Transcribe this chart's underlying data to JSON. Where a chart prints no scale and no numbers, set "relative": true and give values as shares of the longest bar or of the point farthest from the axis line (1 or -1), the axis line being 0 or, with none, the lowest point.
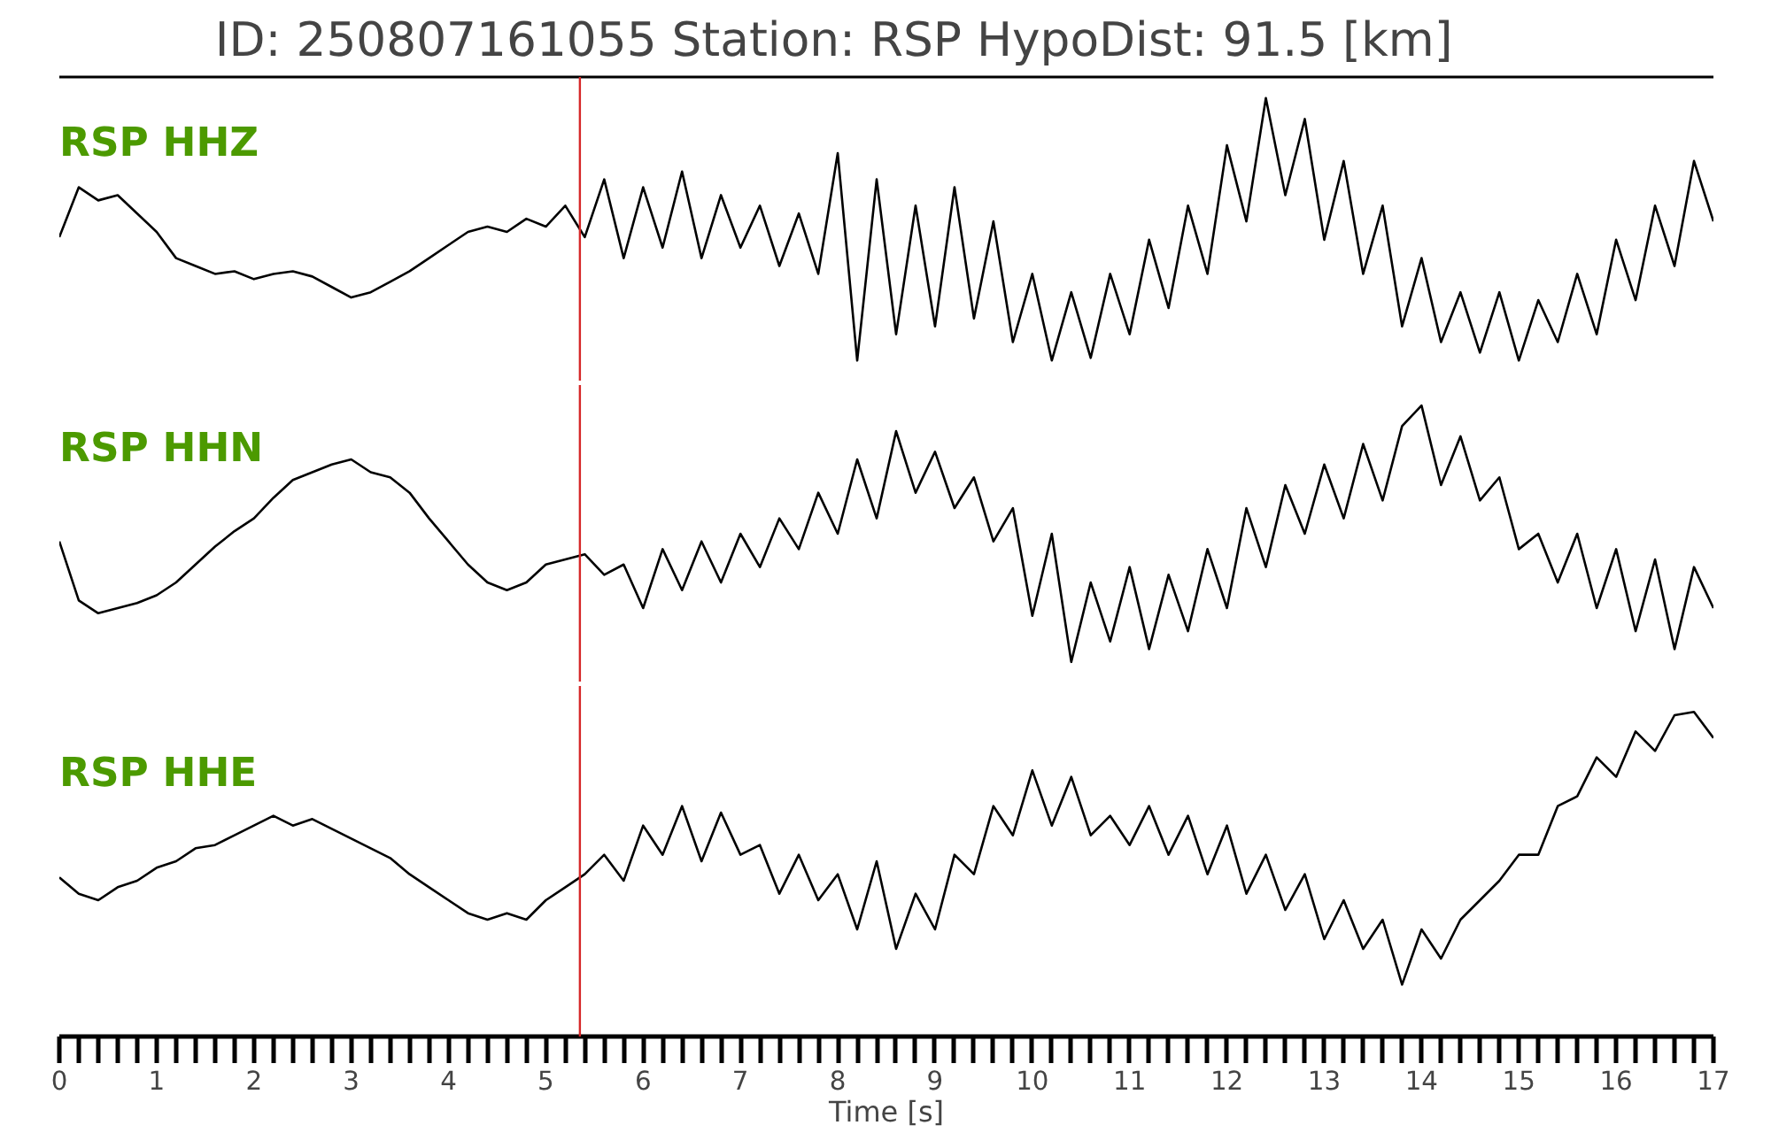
{
  "chart_data": [
    {
      "type": "line",
      "title": "ID: 250807161055   Station: RSP   HypoDist:    91.5 [km]",
      "relative": true,
      "tick_labels": false,
      "xlim": [
        0,
        17
      ],
      "grid": false,
      "x": [
        0,
        0.2,
        0.4,
        0.6,
        0.8,
        1.0,
        1.2,
        1.4,
        1.6,
        1.8,
        2.0,
        2.2,
        2.4,
        2.6,
        2.8,
        3.0,
        3.2,
        3.4,
        3.6,
        3.8,
        4.0,
        4.2,
        4.4,
        4.6,
        4.8,
        5.0,
        5.2,
        5.4,
        5.6,
        5.8,
        6.0,
        6.2,
        6.4,
        6.6,
        6.8,
        7.0,
        7.2,
        7.4,
        7.6,
        7.8,
        8.0,
        8.2,
        8.4,
        8.6,
        8.8,
        9.0,
        9.2,
        9.4,
        9.6,
        9.8,
        10.0,
        10.2,
        10.4,
        10.6,
        10.8,
        11.0,
        11.2,
        11.4,
        11.6,
        11.8,
        12.0,
        12.2,
        12.4,
        12.6,
        12.8,
        13.0,
        13.2,
        13.4,
        13.6,
        13.8,
        14.0,
        14.2,
        14.4,
        14.6,
        14.8,
        15.0,
        15.2,
        15.4,
        15.6,
        15.8,
        16.0,
        16.2,
        16.4,
        16.6,
        16.8,
        17.0
      ],
      "series": [
        {
          "name": "RSP HHZ",
          "color": "#000000",
          "values": [
            0.47,
            0.66,
            0.61,
            0.63,
            0.56,
            0.49,
            0.39,
            0.36,
            0.33,
            0.34,
            0.31,
            0.33,
            0.34,
            0.32,
            0.28,
            0.24,
            0.26,
            0.3,
            0.34,
            0.39,
            0.44,
            0.49,
            0.51,
            0.49,
            0.54,
            0.51,
            0.59,
            0.47,
            0.69,
            0.39,
            0.66,
            0.43,
            0.72,
            0.39,
            0.63,
            0.43,
            0.59,
            0.36,
            0.56,
            0.33,
            0.79,
            0,
            0.69,
            0.1,
            0.59,
            0.13,
            0.66,
            0.16,
            0.53,
            0.07,
            0.33,
            0,
            0.26,
            0.01,
            0.33,
            0.1,
            0.46,
            0.2,
            0.59,
            0.33,
            0.82,
            0.53,
            1,
            0.63,
            0.92,
            0.46,
            0.76,
            0.33,
            0.59,
            0.13,
            0.39,
            0.07,
            0.26,
            0.03,
            0.26,
            0,
            0.23,
            0.07,
            0.33,
            0.1,
            0.46,
            0.23,
            0.59,
            0.36,
            0.76,
            0.53
          ]
        }
      ],
      "ref_lines": [
        {
          "axis": "x",
          "value": 5.35,
          "color": "#d62728"
        }
      ]
    },
    {
      "type": "line",
      "relative": true,
      "tick_labels": false,
      "xlim": [
        0,
        17
      ],
      "grid": false,
      "x": [
        0,
        0.2,
        0.4,
        0.6,
        0.8,
        1.0,
        1.2,
        1.4,
        1.6,
        1.8,
        2.0,
        2.2,
        2.4,
        2.6,
        2.8,
        3.0,
        3.2,
        3.4,
        3.6,
        3.8,
        4.0,
        4.2,
        4.4,
        4.6,
        4.8,
        5.0,
        5.2,
        5.4,
        5.6,
        5.8,
        6.0,
        6.2,
        6.4,
        6.6,
        6.8,
        7.0,
        7.2,
        7.4,
        7.6,
        7.8,
        8.0,
        8.2,
        8.4,
        8.6,
        8.8,
        9.0,
        9.2,
        9.4,
        9.6,
        9.8,
        10.0,
        10.2,
        10.4,
        10.6,
        10.8,
        11.0,
        11.2,
        11.4,
        11.6,
        11.8,
        12.0,
        12.2,
        12.4,
        12.6,
        12.8,
        13.0,
        13.2,
        13.4,
        13.6,
        13.8,
        14.0,
        14.2,
        14.4,
        14.6,
        14.8,
        15.0,
        15.2,
        15.4,
        15.6,
        15.8,
        16.0,
        16.2,
        16.4,
        16.6,
        16.8,
        17.0
      ],
      "series": [
        {
          "name": "RSP HHN",
          "color": "#000000",
          "values": [
            0.47,
            0.24,
            0.19,
            0.21,
            0.23,
            0.26,
            0.31,
            0.38,
            0.45,
            0.51,
            0.56,
            0.64,
            0.71,
            0.74,
            0.77,
            0.79,
            0.74,
            0.72,
            0.66,
            0.56,
            0.47,
            0.38,
            0.31,
            0.28,
            0.31,
            0.38,
            0.4,
            0.42,
            0.34,
            0.38,
            0.21,
            0.44,
            0.28,
            0.47,
            0.31,
            0.5,
            0.37,
            0.56,
            0.44,
            0.66,
            0.5,
            0.79,
            0.56,
            0.9,
            0.66,
            0.82,
            0.6,
            0.72,
            0.47,
            0.6,
            0.18,
            0.5,
            0,
            0.31,
            0.08,
            0.37,
            0.05,
            0.34,
            0.12,
            0.44,
            0.21,
            0.6,
            0.37,
            0.69,
            0.5,
            0.77,
            0.56,
            0.85,
            0.63,
            0.92,
            1,
            0.69,
            0.88,
            0.63,
            0.72,
            0.44,
            0.5,
            0.31,
            0.5,
            0.21,
            0.44,
            0.12,
            0.4,
            0.05,
            0.37,
            0.21
          ]
        }
      ],
      "ref_lines": [
        {
          "axis": "x",
          "value": 5.35,
          "color": "#d62728"
        }
      ]
    },
    {
      "type": "line",
      "relative": true,
      "tick_labels": "x",
      "xlabel": "Time [s]",
      "xlim": [
        0,
        17
      ],
      "grid": false,
      "xticks": [
        0,
        {
          "value": 0.2,
          "label": null
        },
        {
          "value": 0.4,
          "label": null
        },
        {
          "value": 0.6,
          "label": null
        },
        {
          "value": 0.8,
          "label": null
        },
        1,
        {
          "value": 1.2,
          "label": null
        },
        {
          "value": 1.4,
          "label": null
        },
        {
          "value": 1.6,
          "label": null
        },
        {
          "value": 1.8,
          "label": null
        },
        2,
        {
          "value": 2.2,
          "label": null
        },
        {
          "value": 2.4,
          "label": null
        },
        {
          "value": 2.6,
          "label": null
        },
        {
          "value": 2.8,
          "label": null
        },
        3,
        {
          "value": 3.2,
          "label": null
        },
        {
          "value": 3.4,
          "label": null
        },
        {
          "value": 3.6,
          "label": null
        },
        {
          "value": 3.8,
          "label": null
        },
        4,
        {
          "value": 4.2,
          "label": null
        },
        {
          "value": 4.4,
          "label": null
        },
        {
          "value": 4.6,
          "label": null
        },
        {
          "value": 4.8,
          "label": null
        },
        5,
        {
          "value": 5.2,
          "label": null
        },
        {
          "value": 5.4,
          "label": null
        },
        {
          "value": 5.6,
          "label": null
        },
        {
          "value": 5.8,
          "label": null
        },
        6,
        {
          "value": 6.2,
          "label": null
        },
        {
          "value": 6.4,
          "label": null
        },
        {
          "value": 6.6,
          "label": null
        },
        {
          "value": 6.8,
          "label": null
        },
        7,
        {
          "value": 7.2,
          "label": null
        },
        {
          "value": 7.4,
          "label": null
        },
        {
          "value": 7.6,
          "label": null
        },
        {
          "value": 7.8,
          "label": null
        },
        8,
        {
          "value": 8.2,
          "label": null
        },
        {
          "value": 8.4,
          "label": null
        },
        {
          "value": 8.6,
          "label": null
        },
        {
          "value": 8.8,
          "label": null
        },
        9,
        {
          "value": 9.2,
          "label": null
        },
        {
          "value": 9.4,
          "label": null
        },
        {
          "value": 9.6,
          "label": null
        },
        {
          "value": 9.8,
          "label": null
        },
        10,
        {
          "value": 10.2,
          "label": null
        },
        {
          "value": 10.4,
          "label": null
        },
        {
          "value": 10.6,
          "label": null
        },
        {
          "value": 10.8,
          "label": null
        },
        11,
        {
          "value": 11.2,
          "label": null
        },
        {
          "value": 11.4,
          "label": null
        },
        {
          "value": 11.6,
          "label": null
        },
        {
          "value": 11.8,
          "label": null
        },
        12,
        {
          "value": 12.2,
          "label": null
        },
        {
          "value": 12.4,
          "label": null
        },
        {
          "value": 12.6,
          "label": null
        },
        {
          "value": 12.8,
          "label": null
        },
        13,
        {
          "value": 13.2,
          "label": null
        },
        {
          "value": 13.4,
          "label": null
        },
        {
          "value": 13.6,
          "label": null
        },
        {
          "value": 13.8,
          "label": null
        },
        14,
        {
          "value": 14.2,
          "label": null
        },
        {
          "value": 14.4,
          "label": null
        },
        {
          "value": 14.6,
          "label": null
        },
        {
          "value": 14.8,
          "label": null
        },
        15,
        {
          "value": 15.2,
          "label": null
        },
        {
          "value": 15.4,
          "label": null
        },
        {
          "value": 15.6,
          "label": null
        },
        {
          "value": 15.8,
          "label": null
        },
        16,
        {
          "value": 16.2,
          "label": null
        },
        {
          "value": 16.4,
          "label": null
        },
        {
          "value": 16.6,
          "label": null
        },
        {
          "value": 16.8,
          "label": null
        },
        17
      ],
      "x": [
        0,
        0.2,
        0.4,
        0.6,
        0.8,
        1.0,
        1.2,
        1.4,
        1.6,
        1.8,
        2.0,
        2.2,
        2.4,
        2.6,
        2.8,
        3.0,
        3.2,
        3.4,
        3.6,
        3.8,
        4.0,
        4.2,
        4.4,
        4.6,
        4.8,
        5.0,
        5.2,
        5.4,
        5.6,
        5.8,
        6.0,
        6.2,
        6.4,
        6.6,
        6.8,
        7.0,
        7.2,
        7.4,
        7.6,
        7.8,
        8.0,
        8.2,
        8.4,
        8.6,
        8.8,
        9.0,
        9.2,
        9.4,
        9.6,
        9.8,
        10.0,
        10.2,
        10.4,
        10.6,
        10.8,
        11.0,
        11.2,
        11.4,
        11.6,
        11.8,
        12.0,
        12.2,
        12.4,
        12.6,
        12.8,
        13.0,
        13.2,
        13.4,
        13.6,
        13.8,
        14.0,
        14.2,
        14.4,
        14.6,
        14.8,
        15.0,
        15.2,
        15.4,
        15.6,
        15.8,
        16.0,
        16.2,
        16.4,
        16.6,
        16.8,
        17.0
      ],
      "series": [
        {
          "name": "RSP HHE",
          "color": "#000000",
          "values": [
            0.49,
            0.44,
            0.42,
            0.46,
            0.48,
            0.52,
            0.54,
            0.58,
            0.59,
            0.62,
            0.65,
            0.68,
            0.65,
            0.67,
            0.64,
            0.61,
            0.58,
            0.55,
            0.5,
            0.46,
            0.42,
            0.38,
            0.36,
            0.38,
            0.36,
            0.42,
            0.46,
            0.5,
            0.56,
            0.48,
            0.65,
            0.56,
            0.71,
            0.54,
            0.69,
            0.56,
            0.59,
            0.44,
            0.56,
            0.42,
            0.5,
            0.33,
            0.54,
            0.27,
            0.44,
            0.33,
            0.56,
            0.5,
            0.71,
            0.62,
            0.82,
            0.65,
            0.8,
            0.62,
            0.68,
            0.59,
            0.71,
            0.56,
            0.68,
            0.5,
            0.65,
            0.44,
            0.56,
            0.39,
            0.5,
            0.3,
            0.42,
            0.27,
            0.36,
            0.16,
            0.33,
            0.24,
            0.36,
            0.42,
            0.48,
            0.56,
            0.56,
            0.71,
            0.74,
            0.86,
            0.8,
            0.94,
            0.88,
            0.99,
            1,
            0.92
          ]
        }
      ],
      "ref_lines": [
        {
          "axis": "x",
          "value": 5.35,
          "color": "#d62728"
        }
      ]
    }
  ]
}
